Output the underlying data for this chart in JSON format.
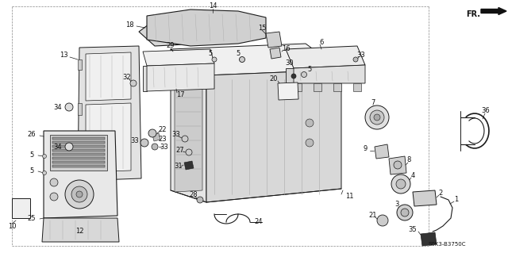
{
  "bg_color": "#ffffff",
  "diagram_code": "S0K3-B3750C",
  "fr_label": "FR.",
  "fig_width": 6.4,
  "fig_height": 3.19,
  "lc": "#1a1a1a",
  "lw": 0.6
}
